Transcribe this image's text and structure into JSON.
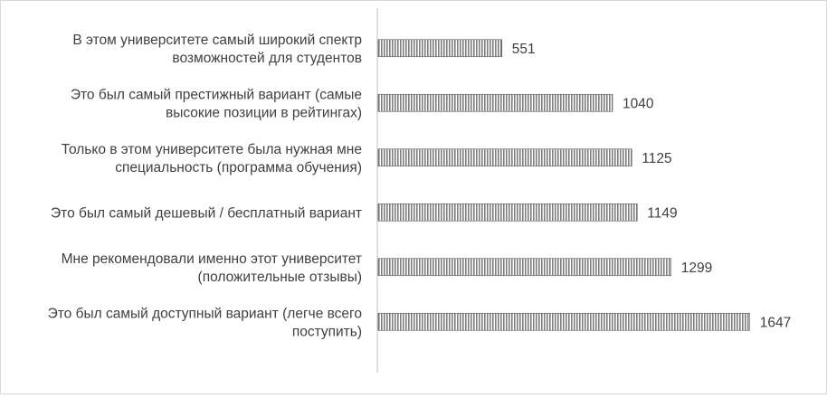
{
  "chart_data": {
    "type": "bar",
    "orientation": "horizontal",
    "title": "",
    "xlabel": "",
    "ylabel": "",
    "categories": [
      [
        "В этом университете самый широкий спектр",
        "возможностей для студентов"
      ],
      [
        "Это был самый престижный вариант (самые",
        "высокие позиции в рейтингах)"
      ],
      [
        "Только в этом университете была нужная мне",
        "специальность (программа обучения)"
      ],
      [
        "Это был самый дешевый / бесплатный вариант"
      ],
      [
        "Мне рекомендовали именно этот университет",
        "(положительные отзывы)"
      ],
      [
        "Это был самый доступный вариант (легче всего",
        "поступить)"
      ]
    ],
    "values": [
      551,
      1040,
      1125,
      1149,
      1299,
      1647
    ],
    "data_labels": [
      "551",
      "1040",
      "1125",
      "1149",
      "1299",
      "1647"
    ],
    "xlim": [
      0,
      1800
    ],
    "xticks": [
      "0",
      "200",
      "400",
      "600",
      "800",
      "1000",
      "1200",
      "1400",
      "1600",
      "1800"
    ],
    "grid": false,
    "legend": "none",
    "bar_pattern": "vertical-stripes",
    "colors": {
      "bar_stripe": "#7f7f7f",
      "bar_gap": "#ffffff",
      "bar_edge": "#595959",
      "axis": "#bfbfbf",
      "text": "#404040"
    }
  }
}
